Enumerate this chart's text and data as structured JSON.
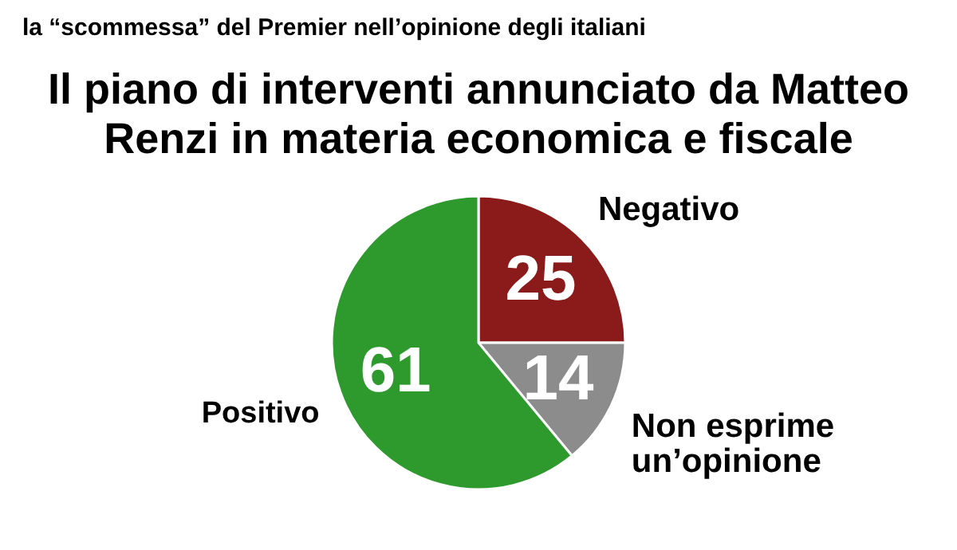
{
  "chart_data": {
    "type": "pie",
    "subtitle": "la “scommessa” del Premier nell’opinione degli italiani",
    "title": "Il piano di interventi annunciato da Matteo Renzi in materia economica e fiscale",
    "categories": [
      "Negativo",
      "Non esprime un’opinione",
      "Positivo"
    ],
    "values": [
      25,
      14,
      61
    ],
    "colors": [
      "#8b1a1a",
      "#8c8c8c",
      "#2e9a2e"
    ],
    "data_labels": true
  }
}
